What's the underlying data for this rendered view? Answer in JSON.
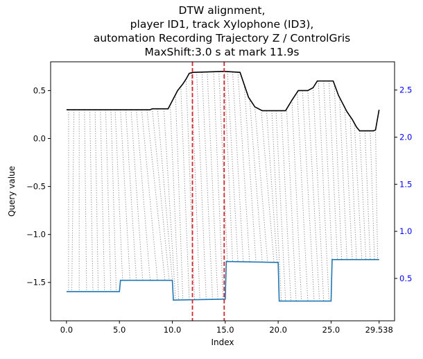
{
  "chart_data": {
    "type": "line",
    "title_lines": [
      "DTW alignment,",
      "player ID1, track Xylophone (ID3),",
      "automation Recording Trajectory Z / ControlGris",
      "MaxShift:3.0 s at mark 11.9s"
    ],
    "xlabel": "Index",
    "ylabel": "Query value",
    "xlim": [
      -1.5,
      31.0
    ],
    "ylim_left": [
      -1.9,
      0.8
    ],
    "ylim_right": [
      0.05,
      2.8
    ],
    "x_ticks": [
      0.0,
      5.0,
      10.0,
      15.0,
      20.0,
      25.0,
      29.538
    ],
    "x_tick_labels": [
      "0.0",
      "5.0",
      "10.0",
      "15.0",
      "20.0",
      "25.0",
      "29.538"
    ],
    "y_ticks_left": [
      0.5,
      0.0,
      -0.5,
      -1.0,
      -1.5
    ],
    "y_tick_labels_left": [
      "0.5",
      "0.0",
      "−0.5",
      "−1.0",
      "−1.5"
    ],
    "y_ticks_right": [
      2.5,
      2.0,
      1.5,
      1.0,
      0.5
    ],
    "y_tick_labels_right": [
      "2.5",
      "2.0",
      "1.5",
      "1.0",
      "0.5"
    ],
    "series": [
      {
        "axis": "left",
        "color": "#000000",
        "points": [
          [
            0,
            0.3
          ],
          [
            7.9,
            0.3
          ],
          [
            8.1,
            0.31
          ],
          [
            9.6,
            0.31
          ],
          [
            10.5,
            0.5
          ],
          [
            11,
            0.57
          ],
          [
            11.3,
            0.62
          ],
          [
            11.6,
            0.68
          ],
          [
            12.0,
            0.69
          ],
          [
            14.9,
            0.7
          ],
          [
            16.4,
            0.69
          ],
          [
            17.2,
            0.43
          ],
          [
            17.8,
            0.33
          ],
          [
            18.5,
            0.29
          ],
          [
            20.0,
            0.29
          ],
          [
            20.7,
            0.29
          ],
          [
            21.3,
            0.4
          ],
          [
            21.9,
            0.5
          ],
          [
            22.8,
            0.5
          ],
          [
            23.3,
            0.53
          ],
          [
            23.7,
            0.6
          ],
          [
            25.2,
            0.6
          ],
          [
            25.7,
            0.45
          ],
          [
            26.5,
            0.28
          ],
          [
            27.0,
            0.2
          ],
          [
            27.4,
            0.12
          ],
          [
            27.7,
            0.08
          ],
          [
            29.0,
            0.08
          ],
          [
            29.2,
            0.09
          ],
          [
            29.538,
            0.3
          ]
        ]
      },
      {
        "axis": "right",
        "color": "#1f77b4",
        "points": [
          [
            0,
            0.36
          ],
          [
            5.0,
            0.36
          ],
          [
            5.1,
            0.48
          ],
          [
            10.0,
            0.48
          ],
          [
            10.1,
            0.27
          ],
          [
            15.0,
            0.28
          ],
          [
            15.1,
            0.68
          ],
          [
            20.0,
            0.67
          ],
          [
            20.1,
            0.26
          ],
          [
            25.0,
            0.26
          ],
          [
            25.1,
            0.7
          ],
          [
            29.538,
            0.7
          ]
        ]
      }
    ],
    "vertical_lines": [
      {
        "x": 11.9,
        "color": "#d62728",
        "style": "dashed"
      },
      {
        "x": 14.9,
        "color": "#d62728",
        "style": "dashed"
      }
    ],
    "alignment_lines": {
      "color": "#888888",
      "style": "dotted",
      "pairs": [
        [
          0.2,
          0.2
        ],
        [
          0.7,
          0.5
        ],
        [
          1.2,
          1.2
        ],
        [
          1.7,
          1.9
        ],
        [
          2.2,
          2.5
        ],
        [
          2.7,
          3.0
        ],
        [
          3.2,
          3.6
        ],
        [
          3.7,
          4.2
        ],
        [
          4.2,
          4.7
        ],
        [
          4.6,
          5.3
        ],
        [
          5.1,
          6.0
        ],
        [
          5.6,
          6.6
        ],
        [
          6.1,
          7.2
        ],
        [
          6.6,
          7.9
        ],
        [
          7.1,
          8.6
        ],
        [
          7.6,
          9.3
        ],
        [
          8.1,
          9.7
        ],
        [
          8.6,
          10.0
        ],
        [
          9.2,
          10.3
        ],
        [
          9.8,
          10.6
        ],
        [
          10.3,
          11.0
        ],
        [
          10.8,
          11.6
        ],
        [
          11.3,
          12.1
        ],
        [
          11.8,
          12.6
        ],
        [
          12.3,
          13.2
        ],
        [
          12.8,
          13.8
        ],
        [
          13.3,
          14.3
        ],
        [
          13.9,
          14.8
        ],
        [
          14.4,
          15.2
        ],
        [
          14.9,
          15.7
        ],
        [
          15.2,
          16.2
        ],
        [
          15.7,
          16.7
        ],
        [
          16.2,
          17.3
        ],
        [
          16.8,
          17.9
        ],
        [
          17.3,
          18.5
        ],
        [
          17.8,
          19.0
        ],
        [
          18.4,
          19.6
        ],
        [
          18.9,
          19.9
        ],
        [
          19.4,
          20.3
        ],
        [
          19.8,
          20.7
        ],
        [
          20.3,
          21.2
        ],
        [
          20.8,
          21.7
        ],
        [
          21.3,
          22.2
        ],
        [
          21.8,
          22.8
        ],
        [
          22.3,
          23.4
        ],
        [
          22.8,
          23.9
        ],
        [
          23.3,
          24.3
        ],
        [
          23.8,
          24.8
        ],
        [
          24.3,
          25.1
        ],
        [
          24.8,
          25.6
        ],
        [
          25.3,
          26.0
        ],
        [
          25.8,
          26.5
        ],
        [
          26.3,
          27.0
        ],
        [
          26.8,
          27.4
        ],
        [
          27.2,
          27.9
        ],
        [
          27.7,
          28.3
        ],
        [
          28.2,
          28.7
        ],
        [
          28.7,
          29.1
        ],
        [
          29.2,
          29.4
        ]
      ]
    }
  }
}
